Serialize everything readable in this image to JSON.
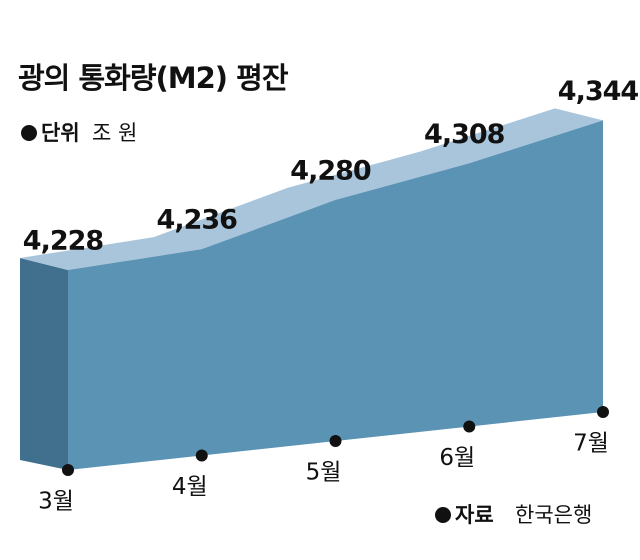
{
  "chart_data": {
    "type": "area",
    "title": "광의 통화량(M2) 평잔",
    "unit_label": "단위",
    "unit": "조 원",
    "source_label": "자료",
    "source": "한국은행",
    "categories": [
      "3월",
      "4월",
      "5월",
      "6월",
      "7월"
    ],
    "values": [
      4228,
      4236,
      4280,
      4308,
      4344
    ],
    "value_labels": [
      "4,228",
      "4,236",
      "4,280",
      "4,308",
      "4,344"
    ],
    "color": "#5b93b5"
  }
}
